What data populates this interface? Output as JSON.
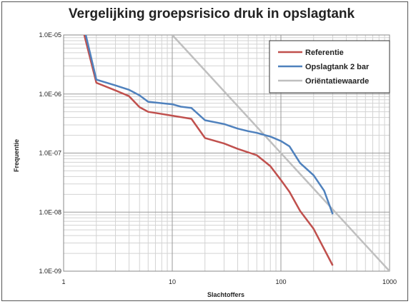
{
  "chart_data": {
    "type": "line",
    "title": "Vergelijking groepsrisico druk in opslagtank",
    "xlabel": "Slachtoffers",
    "ylabel": "Frequentie",
    "x_scale": "log",
    "y_scale": "log",
    "xlim": [
      1,
      1000
    ],
    "ylim": [
      1e-09,
      1e-05
    ],
    "x_ticks": [
      "1",
      "10",
      "100",
      "1000"
    ],
    "y_ticks": [
      "1.0E-09",
      "1.0E-08",
      "1.0E-07",
      "1.0E-06",
      "1.0E-05"
    ],
    "grid": true,
    "legend_position": "top-right",
    "series": [
      {
        "name": "Referentie",
        "color": "#c0504d",
        "x": [
          1.55,
          2,
          3,
          4,
          5,
          6,
          8,
          10,
          15,
          20,
          30,
          40,
          60,
          80,
          100,
          120,
          150,
          200,
          300
        ],
        "y": [
          1e-05,
          1.55e-06,
          1.15e-06,
          9.2e-07,
          6e-07,
          5e-07,
          4.6e-07,
          4.3e-07,
          3.8e-07,
          1.8e-07,
          1.45e-07,
          1.18e-07,
          9.2e-08,
          6e-08,
          3.5e-08,
          2.2e-08,
          1.05e-08,
          5.2e-09,
          1.25e-09
        ]
      },
      {
        "name": "Opslagtank 2 bar",
        "color": "#4f81bd",
        "x": [
          1.6,
          2,
          3,
          4,
          5,
          6,
          8,
          10,
          12,
          15,
          20,
          30,
          40,
          50,
          60,
          80,
          100,
          120,
          150,
          200,
          250,
          300
        ],
        "y": [
          1e-05,
          1.75e-06,
          1.4e-06,
          1.18e-06,
          9.5e-07,
          7.4e-07,
          7e-07,
          6.7e-07,
          6.1e-07,
          5.8e-07,
          3.6e-07,
          3.1e-07,
          2.6e-07,
          2.35e-07,
          2.2e-07,
          1.9e-07,
          1.6e-07,
          1.3e-07,
          6.8e-08,
          4.2e-08,
          2.3e-08,
          9.2e-09
        ]
      },
      {
        "name": "Oriëntatiewaarde",
        "color": "#bfbfbf",
        "x": [
          10,
          1000
        ],
        "y": [
          1e-05,
          1e-09
        ]
      }
    ]
  }
}
